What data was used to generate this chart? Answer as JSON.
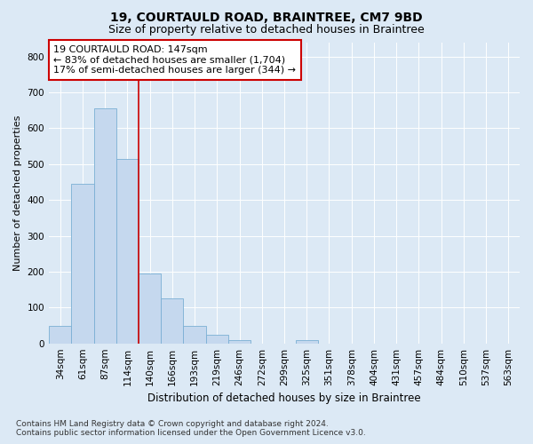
{
  "title1": "19, COURTAULD ROAD, BRAINTREE, CM7 9BD",
  "title2": "Size of property relative to detached houses in Braintree",
  "xlabel": "Distribution of detached houses by size in Braintree",
  "ylabel": "Number of detached properties",
  "categories": [
    "34sqm",
    "61sqm",
    "87sqm",
    "114sqm",
    "140sqm",
    "166sqm",
    "193sqm",
    "219sqm",
    "246sqm",
    "272sqm",
    "299sqm",
    "325sqm",
    "351sqm",
    "378sqm",
    "404sqm",
    "431sqm",
    "457sqm",
    "484sqm",
    "510sqm",
    "537sqm",
    "563sqm"
  ],
  "values": [
    48,
    445,
    655,
    515,
    195,
    125,
    48,
    25,
    10,
    0,
    0,
    10,
    0,
    0,
    0,
    0,
    0,
    0,
    0,
    0,
    0
  ],
  "bar_color": "#c5d8ee",
  "bar_edge_color": "#7aafd4",
  "vline_color": "#cc0000",
  "vline_x_index": 3.5,
  "ylim": [
    0,
    840
  ],
  "yticks": [
    0,
    100,
    200,
    300,
    400,
    500,
    600,
    700,
    800
  ],
  "annotation_text": "19 COURTAULD ROAD: 147sqm\n← 83% of detached houses are smaller (1,704)\n17% of semi-detached houses are larger (344) →",
  "annotation_box_facecolor": "#ffffff",
  "annotation_box_edgecolor": "#cc0000",
  "fig_bg_color": "#dce9f5",
  "plot_bg_color": "#dce9f5",
  "footer": "Contains HM Land Registry data © Crown copyright and database right 2024.\nContains public sector information licensed under the Open Government Licence v3.0.",
  "title1_fontsize": 10,
  "title2_fontsize": 9,
  "xlabel_fontsize": 8.5,
  "ylabel_fontsize": 8,
  "tick_fontsize": 7.5,
  "annotation_fontsize": 8,
  "footer_fontsize": 6.5
}
